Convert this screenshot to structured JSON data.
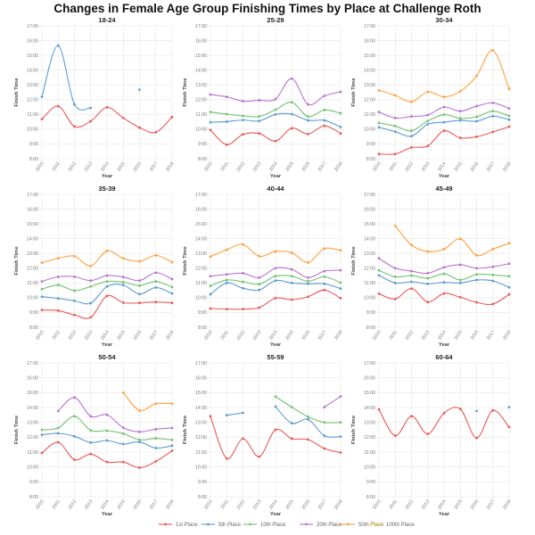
{
  "title": "Changes in Female Age Group Finishing Times by Place at Challenge Roth",
  "legend": [
    {
      "name": "1st Place",
      "color": "#ea5a57"
    },
    {
      "name": "5th Place",
      "color": "#5c9bd3"
    },
    {
      "name": "10th Place",
      "color": "#72c26e"
    },
    {
      "name": "20th Place",
      "color": "#b873d0"
    },
    {
      "name": "50th Place",
      "color": "#ffa03e"
    },
    {
      "name": "100th Place",
      "color": "#f2e23a"
    }
  ],
  "chart_data": [
    {
      "type": "line",
      "title": "18-24",
      "xlabel": "Year",
      "ylabel": "Finish Time",
      "ylim": [
        8,
        17
      ],
      "grid": true,
      "y_unit": "hours",
      "legend_position": "bottom",
      "yticks": [
        "8:00",
        "9:00",
        "10:00",
        "11:00",
        "12:00",
        "13:00",
        "14:00",
        "15:00",
        "16:00",
        "17:00"
      ],
      "x": [
        "2010",
        "2011",
        "2012",
        "2013",
        "2014",
        "2015",
        "2016",
        "2017",
        "2018"
      ],
      "series": [
        {
          "name": "1st Place",
          "values": [
            10.68,
            11.56,
            10.19,
            10.54,
            11.48,
            10.76,
            10.11,
            9.79,
            10.82
          ]
        },
        {
          "name": "5th Place",
          "values": [
            12.2,
            15.67,
            11.68,
            11.44,
            null,
            null,
            12.67,
            null,
            null
          ]
        }
      ]
    },
    {
      "type": "line",
      "title": "25-29",
      "xlabel": "Year",
      "ylabel": "Finish Time",
      "ylim": [
        8,
        17
      ],
      "grid": true,
      "y_unit": "hours",
      "legend_position": "bottom",
      "yticks": [
        "8:00",
        "9:00",
        "10:00",
        "11:00",
        "12:00",
        "13:00",
        "14:00",
        "15:00",
        "16:00",
        "17:00"
      ],
      "x": [
        "2010",
        "2011",
        "2012",
        "2013",
        "2014",
        "2015",
        "2016",
        "2017",
        "2018"
      ],
      "series": [
        {
          "name": "1st Place",
          "values": [
            9.95,
            8.95,
            9.65,
            9.71,
            9.19,
            10.07,
            9.67,
            10.23,
            9.71
          ]
        },
        {
          "name": "5th Place",
          "values": [
            10.47,
            10.51,
            10.62,
            10.56,
            11.0,
            11.02,
            10.6,
            10.6,
            10.15
          ]
        },
        {
          "name": "10th Place",
          "values": [
            11.16,
            11.02,
            10.9,
            10.86,
            11.32,
            11.82,
            10.86,
            11.3,
            11.08
          ]
        },
        {
          "name": "20th Place",
          "values": [
            12.35,
            12.19,
            11.9,
            11.96,
            12.04,
            13.43,
            11.68,
            12.25,
            12.53
          ]
        }
      ]
    },
    {
      "type": "line",
      "title": "30-34",
      "xlabel": "Year",
      "ylabel": "Finish Time",
      "ylim": [
        8,
        17
      ],
      "grid": true,
      "y_unit": "hours",
      "legend_position": "bottom",
      "yticks": [
        "8:00",
        "9:00",
        "10:00",
        "11:00",
        "12:00",
        "13:00",
        "14:00",
        "15:00",
        "16:00",
        "17:00"
      ],
      "x": [
        "2010",
        "2011",
        "2012",
        "2013",
        "2014",
        "2015",
        "2016",
        "2017",
        "2018"
      ],
      "series": [
        {
          "name": "1st Place",
          "values": [
            8.32,
            8.32,
            8.76,
            8.86,
            9.89,
            9.41,
            9.49,
            9.81,
            10.17
          ]
        },
        {
          "name": "5th Place",
          "values": [
            10.13,
            9.83,
            9.53,
            10.33,
            10.47,
            10.6,
            10.54,
            10.88,
            10.64
          ]
        },
        {
          "name": "10th Place",
          "values": [
            10.43,
            10.21,
            9.89,
            10.56,
            10.98,
            10.74,
            10.84,
            11.22,
            10.9
          ]
        },
        {
          "name": "20th Place",
          "values": [
            11.16,
            10.76,
            10.86,
            10.96,
            11.5,
            11.22,
            11.56,
            11.78,
            11.4
          ]
        },
        {
          "name": "50th Place",
          "values": [
            12.63,
            12.29,
            11.86,
            12.53,
            12.19,
            12.57,
            13.61,
            15.34,
            12.73
          ]
        }
      ]
    },
    {
      "type": "line",
      "title": "35-39",
      "xlabel": "Year",
      "ylabel": "Finish Time",
      "ylim": [
        8,
        17
      ],
      "grid": true,
      "y_unit": "hours",
      "legend_position": "bottom",
      "yticks": [
        "8:00",
        "9:00",
        "10:00",
        "11:00",
        "12:00",
        "13:00",
        "14:00",
        "15:00",
        "16:00",
        "17:00"
      ],
      "x": [
        "2010",
        "2011",
        "2012",
        "2013",
        "2014",
        "2015",
        "2016",
        "2017",
        "2018"
      ],
      "series": [
        {
          "name": "1st Place",
          "values": [
            9.17,
            9.13,
            8.83,
            8.67,
            10.12,
            9.67,
            9.65,
            9.71,
            9.65
          ]
        },
        {
          "name": "5th Place",
          "values": [
            10.07,
            9.95,
            9.79,
            9.63,
            10.76,
            10.86,
            10.25,
            10.69,
            10.29
          ]
        },
        {
          "name": "10th Place",
          "values": [
            10.58,
            10.86,
            10.48,
            10.76,
            11.1,
            11.06,
            10.82,
            11.1,
            10.72
          ]
        },
        {
          "name": "20th Place",
          "values": [
            11.1,
            11.42,
            11.42,
            11.16,
            11.5,
            11.4,
            11.16,
            11.7,
            11.26
          ]
        },
        {
          "name": "50th Place",
          "values": [
            12.37,
            12.67,
            12.81,
            12.15,
            13.17,
            12.67,
            12.47,
            12.87,
            12.41
          ]
        }
      ]
    },
    {
      "type": "line",
      "title": "40-44",
      "xlabel": "Year",
      "ylabel": "Finish Time",
      "ylim": [
        8,
        17
      ],
      "grid": true,
      "y_unit": "hours",
      "legend_position": "bottom",
      "yticks": [
        "8:00",
        "9:00",
        "10:00",
        "11:00",
        "12:00",
        "13:00",
        "14:00",
        "15:00",
        "16:00",
        "17:00"
      ],
      "x": [
        "2010",
        "2011",
        "2012",
        "2013",
        "2014",
        "2015",
        "2016",
        "2017",
        "2018"
      ],
      "series": [
        {
          "name": "1st Place",
          "values": [
            9.27,
            9.23,
            9.23,
            9.33,
            9.97,
            9.87,
            10.07,
            10.52,
            9.97
          ]
        },
        {
          "name": "5th Place",
          "values": [
            10.23,
            11.0,
            10.64,
            10.53,
            11.16,
            11.0,
            10.94,
            10.94,
            10.62
          ]
        },
        {
          "name": "10th Place",
          "values": [
            10.8,
            11.2,
            11.08,
            10.92,
            11.46,
            11.46,
            11.12,
            11.42,
            11.02
          ]
        },
        {
          "name": "20th Place",
          "values": [
            11.46,
            11.58,
            11.66,
            11.36,
            12.0,
            11.92,
            11.36,
            11.8,
            11.86
          ]
        },
        {
          "name": "50th Place",
          "values": [
            12.79,
            13.25,
            13.61,
            12.81,
            13.13,
            13.05,
            12.39,
            13.33,
            13.21
          ]
        }
      ]
    },
    {
      "type": "line",
      "title": "45-49",
      "xlabel": "Year",
      "ylabel": "Finish Time",
      "ylim": [
        8,
        17
      ],
      "grid": true,
      "y_unit": "hours",
      "legend_position": "bottom",
      "yticks": [
        "8:00",
        "9:00",
        "10:00",
        "11:00",
        "12:00",
        "13:00",
        "14:00",
        "15:00",
        "16:00",
        "17:00"
      ],
      "x": [
        "2010",
        "2011",
        "2012",
        "2013",
        "2014",
        "2015",
        "2016",
        "2017",
        "2018"
      ],
      "series": [
        {
          "name": "1st Place",
          "values": [
            10.27,
            9.91,
            10.62,
            9.71,
            10.29,
            10.03,
            9.69,
            9.57,
            10.23
          ]
        },
        {
          "name": "5th Place",
          "values": [
            11.52,
            11.0,
            11.08,
            10.94,
            11.04,
            11.0,
            11.2,
            11.14,
            10.7
          ]
        },
        {
          "name": "10th Place",
          "values": [
            11.86,
            11.42,
            11.5,
            11.32,
            11.62,
            11.2,
            11.58,
            11.54,
            11.46
          ]
        },
        {
          "name": "20th Place",
          "values": [
            12.67,
            12.0,
            11.8,
            11.66,
            12.06,
            12.23,
            12.0,
            12.1,
            12.3
          ]
        },
        {
          "name": "50th Place",
          "values": [
            null,
            14.87,
            13.57,
            13.13,
            13.29,
            13.99,
            12.87,
            13.29,
            13.69
          ]
        }
      ]
    },
    {
      "type": "line",
      "title": "50-54",
      "xlabel": "Year",
      "ylabel": "Finish Time",
      "ylim": [
        8,
        17
      ],
      "grid": true,
      "y_unit": "hours",
      "legend_position": "bottom",
      "yticks": [
        "8:00",
        "9:00",
        "10:00",
        "11:00",
        "12:00",
        "13:00",
        "14:00",
        "15:00",
        "16:00",
        "17:00"
      ],
      "x": [
        "2010",
        "2011",
        "2012",
        "2013",
        "2014",
        "2015",
        "2016",
        "2017",
        "2018"
      ],
      "series": [
        {
          "name": "1st Place",
          "values": [
            10.94,
            11.66,
            10.49,
            10.87,
            10.33,
            10.33,
            9.95,
            10.37,
            11.09
          ]
        },
        {
          "name": "5th Place",
          "values": [
            12.16,
            12.26,
            12.06,
            11.64,
            11.78,
            11.54,
            11.68,
            11.27,
            11.43
          ]
        },
        {
          "name": "10th Place",
          "values": [
            12.5,
            12.62,
            13.41,
            12.46,
            12.44,
            12.24,
            11.82,
            11.92,
            11.82
          ]
        },
        {
          "name": "20th Place",
          "values": [
            null,
            13.76,
            14.67,
            13.41,
            13.51,
            12.64,
            12.36,
            12.54,
            12.62
          ]
        },
        {
          "name": "50th Place",
          "values": [
            null,
            null,
            null,
            null,
            null,
            15.0,
            13.8,
            14.26,
            14.26
          ]
        }
      ]
    },
    {
      "type": "line",
      "title": "55-59",
      "xlabel": "Year",
      "ylabel": "Finish Time",
      "ylim": [
        8,
        17
      ],
      "grid": true,
      "y_unit": "hours",
      "legend_position": "bottom",
      "yticks": [
        "8:00",
        "9:00",
        "10:00",
        "11:00",
        "12:00",
        "13:00",
        "14:00",
        "15:00",
        "16:00",
        "17:00"
      ],
      "x": [
        "2010",
        "2011",
        "2012",
        "2013",
        "2014",
        "2015",
        "2016",
        "2017",
        "2018"
      ],
      "series": [
        {
          "name": "1st Place",
          "values": [
            13.41,
            10.57,
            11.9,
            10.69,
            12.5,
            11.9,
            11.84,
            11.24,
            10.97
          ]
        },
        {
          "name": "5th Place",
          "values": [
            null,
            13.48,
            13.64,
            null,
            14.06,
            12.94,
            13.2,
            12.1,
            12.04
          ]
        },
        {
          "name": "10th Place",
          "values": [
            null,
            null,
            null,
            null,
            14.73,
            14.02,
            13.38,
            13.0,
            13.0
          ]
        },
        {
          "name": "20th Place",
          "values": [
            null,
            null,
            null,
            null,
            null,
            null,
            null,
            14.02,
            14.75
          ]
        }
      ]
    },
    {
      "type": "line",
      "title": "60-64",
      "xlabel": "Year",
      "ylabel": "Finish Time",
      "ylim": [
        8,
        17
      ],
      "grid": true,
      "y_unit": "hours",
      "legend_position": "bottom",
      "yticks": [
        "8:00",
        "9:00",
        "10:00",
        "11:00",
        "12:00",
        "13:00",
        "14:00",
        "15:00",
        "16:00",
        "17:00"
      ],
      "x": [
        "2010",
        "2011",
        "2012",
        "2013",
        "2014",
        "2015",
        "2016",
        "2017",
        "2018"
      ],
      "series": [
        {
          "name": "1st Place",
          "values": [
            13.87,
            12.1,
            13.42,
            12.22,
            13.62,
            13.9,
            11.95,
            13.8,
            12.68
          ]
        },
        {
          "name": "5th Place",
          "values": [
            null,
            null,
            null,
            null,
            null,
            null,
            13.76,
            null,
            14.02
          ]
        }
      ]
    }
  ]
}
